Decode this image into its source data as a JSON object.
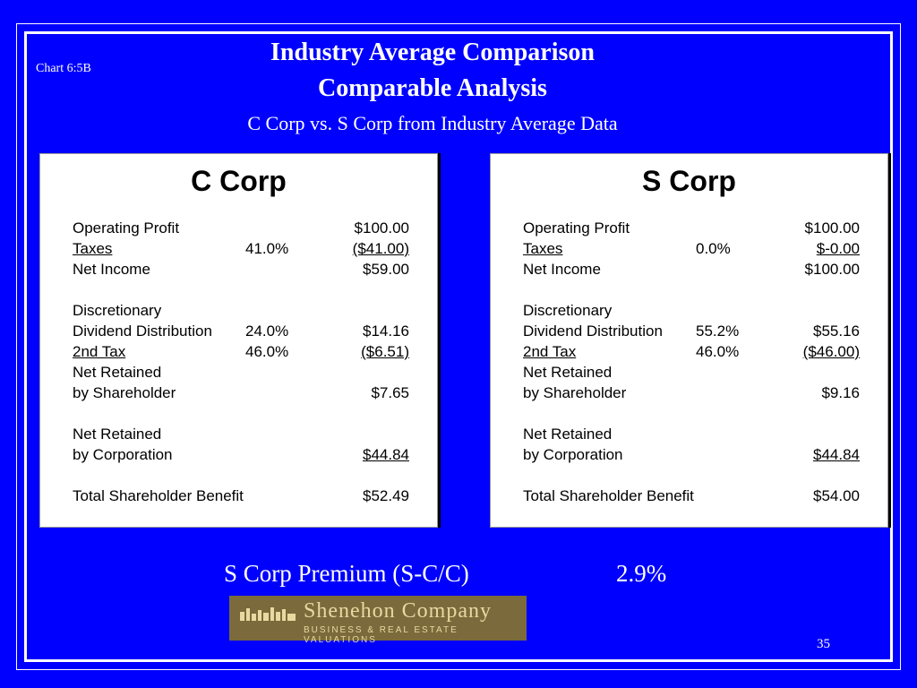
{
  "chart_ref": "Chart 6:5B",
  "title": "Industry Average Comparison",
  "subtitle": "Comparable Analysis",
  "subsubtitle": "C Corp vs. S Corp from Industry Average Data",
  "c_corp": {
    "title": "C Corp",
    "rows": [
      {
        "label": "Operating Profit",
        "pct": "",
        "amount": "$100.00"
      },
      {
        "label": "Taxes",
        "pct": "41.0%",
        "amount": "($41.00)"
      },
      {
        "label": "Net Income",
        "pct": "",
        "amount": "$59.00"
      },
      {
        "label": "Discretionary",
        "pct": "",
        "amount": ""
      },
      {
        "label": "Dividend Distribution",
        "pct": "24.0%",
        "amount": "$14.16"
      },
      {
        "label": "2nd Tax",
        "pct": "46.0%",
        "amount": "($6.51)"
      },
      {
        "label": "Net Retained",
        "pct": "",
        "amount": ""
      },
      {
        "label": "by Shareholder",
        "pct": "",
        "amount": "$7.65"
      },
      {
        "label": "Net Retained",
        "pct": "",
        "amount": ""
      },
      {
        "label": "by Corporation",
        "pct": "",
        "amount": "$44.84"
      },
      {
        "label": "Total Shareholder Benefit",
        "pct": "",
        "amount": "$52.49"
      }
    ]
  },
  "s_corp": {
    "title": "S Corp",
    "rows": [
      {
        "label": "Operating Profit",
        "pct": "",
        "amount": "$100.00"
      },
      {
        "label": "Taxes",
        "pct": "0.0%",
        "amount": "$-0.00"
      },
      {
        "label": "Net Income",
        "pct": "",
        "amount": "$100.00"
      },
      {
        "label": "Discretionary",
        "pct": "",
        "amount": ""
      },
      {
        "label": "Dividend Distribution",
        "pct": "55.2%",
        "amount": "$55.16"
      },
      {
        "label": "2nd Tax",
        "pct": "46.0%",
        "amount": "($46.00)"
      },
      {
        "label": "Net Retained",
        "pct": "",
        "amount": ""
      },
      {
        "label": "by Shareholder",
        "pct": "",
        "amount": "$9.16"
      },
      {
        "label": "Net Retained",
        "pct": "",
        "amount": ""
      },
      {
        "label": "by Corporation",
        "pct": "",
        "amount": "$44.84"
      },
      {
        "label": "Total Shareholder Benefit",
        "pct": "",
        "amount": "$54.00"
      }
    ]
  },
  "premium_label": "S Corp Premium (S-C/C)",
  "premium_value": "2.9%",
  "logo": {
    "name": "Shenehon Company",
    "tagline": "BUSINESS & REAL ESTATE VALUATIONS"
  },
  "page_number": "35",
  "colors": {
    "background": "#0000ff",
    "text": "#ffffff",
    "logo_bg": "#7a6a3c"
  }
}
